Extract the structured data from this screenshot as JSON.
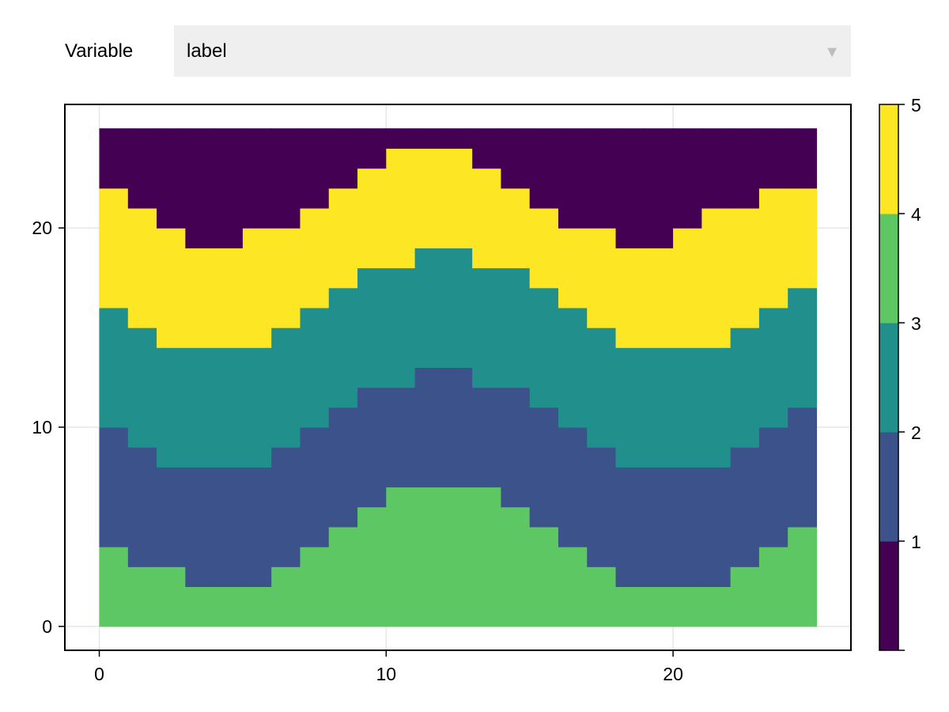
{
  "controls": {
    "variable_label": "Variable",
    "selected_value": "label",
    "dropdown_icon": "triangle-down-icon"
  },
  "colors": {
    "levels": [
      "#440154",
      "#3b528b",
      "#21908c",
      "#5dc863",
      "#fde725"
    ]
  },
  "chart_data": {
    "type": "heatmap",
    "title": "",
    "xlabel": "",
    "ylabel": "",
    "xlim": [
      -1.2,
      26.2
    ],
    "ylim": [
      -1.2,
      26.2
    ],
    "x_ticks": [
      0,
      10,
      20
    ],
    "y_ticks": [
      0,
      10,
      20
    ],
    "grid": true,
    "domain": {
      "x": [
        0,
        25
      ],
      "y": [
        0,
        25
      ]
    },
    "columns_x": [
      [
        0,
        1
      ],
      [
        1,
        2
      ],
      [
        2,
        3
      ],
      [
        3,
        4
      ],
      [
        4,
        5
      ],
      [
        5,
        6
      ],
      [
        6,
        7
      ],
      [
        7,
        8
      ],
      [
        8,
        9
      ],
      [
        9,
        10
      ],
      [
        10,
        11
      ],
      [
        11,
        12
      ],
      [
        12,
        13
      ],
      [
        13,
        14
      ],
      [
        14,
        15
      ],
      [
        15,
        16
      ],
      [
        16,
        17
      ],
      [
        17,
        18
      ],
      [
        18,
        19
      ],
      [
        19,
        20
      ],
      [
        20,
        21
      ],
      [
        21,
        22
      ],
      [
        22,
        23
      ],
      [
        23,
        24
      ],
      [
        24,
        25
      ]
    ],
    "level_colors": [
      "#440154",
      "#3b528b",
      "#21908c",
      "#5dc863",
      "#fde725"
    ],
    "level_boundaries_y": [
      [
        4,
        3,
        3,
        2,
        2,
        2,
        3,
        4,
        5,
        6,
        7,
        7,
        7,
        7,
        6,
        5,
        4,
        3,
        2,
        2,
        2,
        2,
        3,
        4,
        5
      ],
      [
        10,
        9,
        8,
        8,
        8,
        8,
        9,
        10,
        11,
        12,
        12,
        13,
        13,
        12,
        12,
        11,
        10,
        9,
        8,
        8,
        8,
        8,
        9,
        10,
        11
      ],
      [
        16,
        15,
        14,
        14,
        14,
        14,
        15,
        16,
        17,
        18,
        18,
        19,
        19,
        18,
        18,
        17,
        16,
        15,
        14,
        14,
        14,
        14,
        15,
        16,
        17
      ],
      [
        22,
        21,
        20,
        19,
        19,
        20,
        20,
        21,
        22,
        23,
        24,
        24,
        24,
        23,
        22,
        21,
        20,
        20,
        19,
        19,
        20,
        21,
        21,
        22,
        22
      ]
    ],
    "band_levels_bottom_to_top": [
      4,
      2,
      3,
      5,
      1
    ],
    "colorbar": {
      "ticks": [
        1,
        2,
        3,
        4,
        5
      ],
      "range": [
        0,
        5
      ],
      "segments": [
        {
          "from": 0,
          "to": 1,
          "color": "#440154"
        },
        {
          "from": 1,
          "to": 2,
          "color": "#3b528b"
        },
        {
          "from": 2,
          "to": 3,
          "color": "#21908c"
        },
        {
          "from": 3,
          "to": 4,
          "color": "#5dc863"
        },
        {
          "from": 4,
          "to": 5,
          "color": "#fde725"
        }
      ]
    }
  }
}
